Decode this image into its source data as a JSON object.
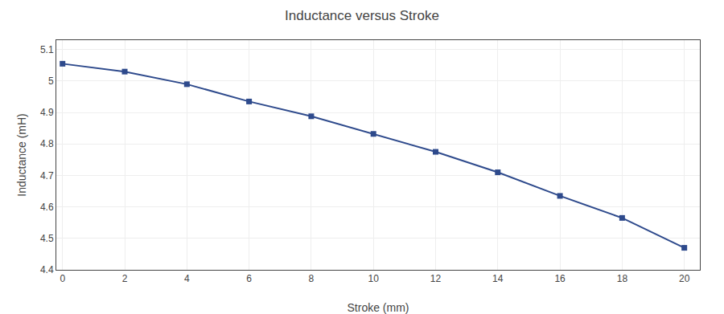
{
  "chart_data": {
    "type": "line",
    "title": "Inductance versus Stroke",
    "xlabel": "Stroke (mm)",
    "ylabel": "Inductance (mH)",
    "x": [
      0,
      2,
      4,
      6,
      8,
      10,
      12,
      14,
      16,
      18,
      20
    ],
    "values": [
      5.055,
      5.03,
      4.99,
      4.935,
      4.888,
      4.832,
      4.775,
      4.71,
      4.635,
      4.565,
      4.47
    ],
    "color": "#2E4A8C",
    "marker": "square",
    "line_style": "solid",
    "xlim": [
      -0.2,
      20.5
    ],
    "ylim": [
      4.4,
      5.13
    ],
    "xticks": [
      0,
      2,
      4,
      6,
      8,
      10,
      12,
      14,
      16,
      18,
      20
    ],
    "yticks": [
      4.4,
      4.5,
      4.6,
      4.7,
      4.8,
      4.9,
      5.0,
      5.1
    ],
    "grid": true
  }
}
